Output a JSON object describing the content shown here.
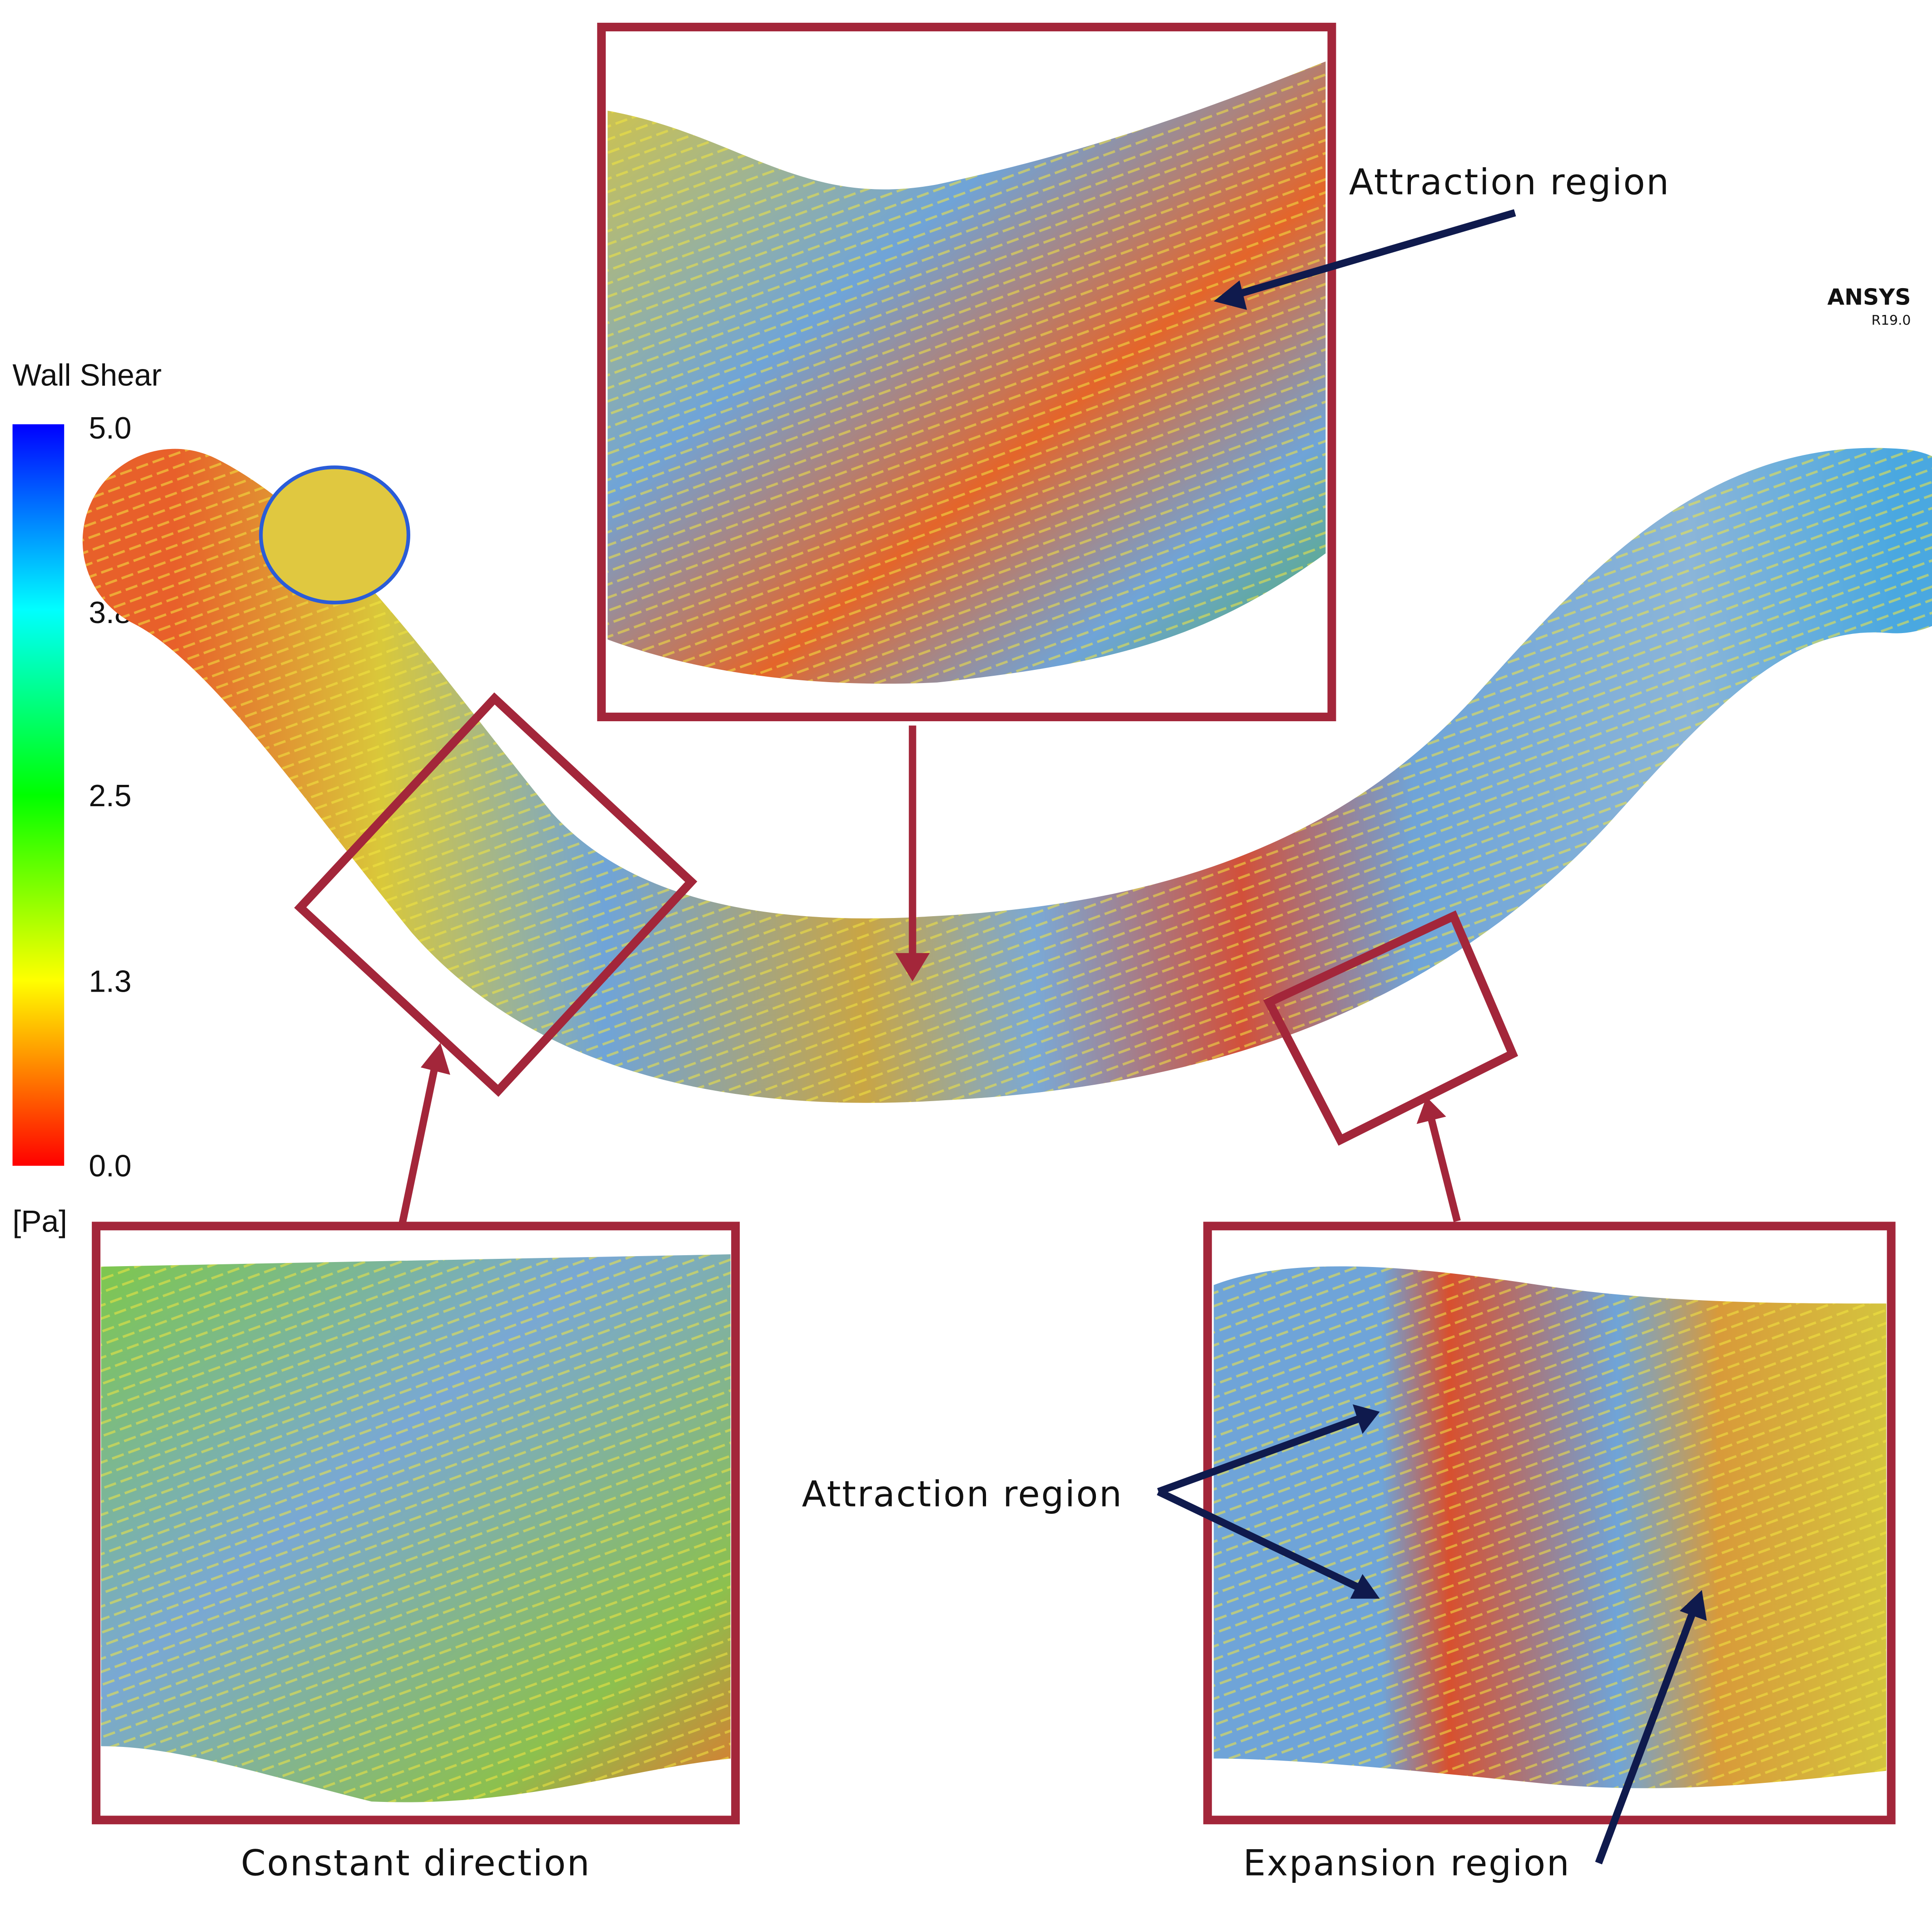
{
  "colorbar": {
    "title": "Wall Shear",
    "ticks": [
      "5.0",
      "3.8",
      "2.5",
      "1.3",
      "0.0"
    ],
    "unit": "[Pa]"
  },
  "software": {
    "name": "ANSYS",
    "version": "R19.0"
  },
  "callouts": {
    "top": "Attraction region",
    "bottom_left": "Constant direction",
    "bottom_right_attraction": "Attraction region",
    "bottom_right_expansion": "Expansion region"
  }
}
